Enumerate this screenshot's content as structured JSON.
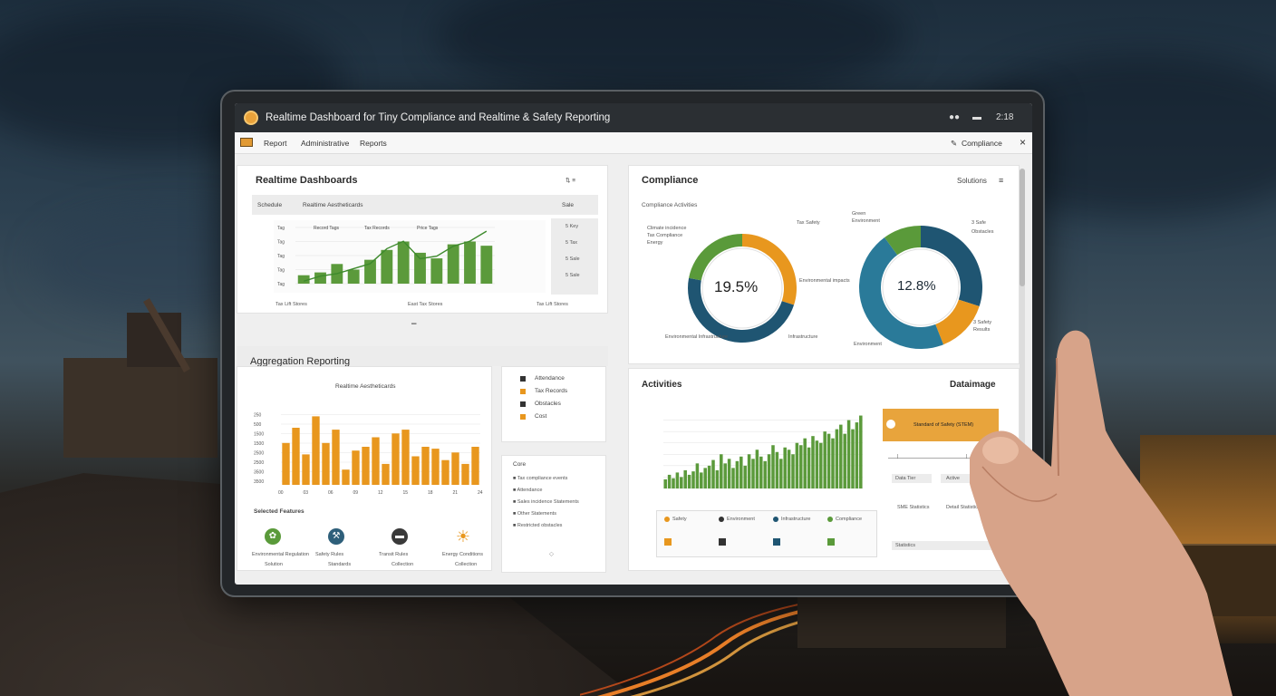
{
  "titlebar": {
    "title": "Realtime Dashboard for Tiny Compliance and Realtime & Safety Reporting",
    "right_icons": [
      "link-icon",
      "cloud-icon"
    ],
    "right_label": "2:18"
  },
  "menubar": {
    "items": [
      "Report",
      "Administrative",
      "Reports"
    ],
    "right_label": "Compliance",
    "close": "×"
  },
  "realtime": {
    "title": "Realtime Dashboards",
    "toolbar_left": "Schedule",
    "toolbar_mid": "Realtime Aestheticards",
    "toolbar_right": "Sale",
    "side_items": [
      "5 Key",
      "5 Tax",
      "5 Sale",
      "5 Sale"
    ],
    "footer": [
      "Tax Lift Stores",
      "East Tax Stores",
      "Tax Lift Stores"
    ],
    "chart_data": {
      "type": "bar",
      "categories": [
        "1",
        "2",
        "3",
        "4",
        "5",
        "6",
        "7",
        "8",
        "9",
        "10",
        "11",
        "12"
      ],
      "values": [
        6,
        8,
        14,
        10,
        17,
        24,
        30,
        22,
        18,
        28,
        30,
        27
      ],
      "ylim": [
        0,
        40
      ],
      "ytick_labels": [
        "Tag",
        "Tag",
        "Tag",
        "Tag",
        "Tag"
      ],
      "line": [
        2,
        6,
        8,
        12,
        16,
        28,
        34,
        20,
        22,
        30,
        34,
        42
      ],
      "annotations": [
        "Record Tags",
        "Tax Records",
        "Price Tags"
      ]
    }
  },
  "aggregation": {
    "title": "Aggregation Reporting",
    "chart_title": "Realtime Aestheticards",
    "chart_data": {
      "type": "bar",
      "categories": [
        "0",
        "1",
        "2",
        "3",
        "4",
        "5",
        "6",
        "7",
        "8",
        "9",
        "10",
        "11",
        "12",
        "13",
        "14",
        "15",
        "16",
        "17",
        "18",
        "19"
      ],
      "values": [
        22,
        30,
        16,
        36,
        22,
        29,
        8,
        18,
        20,
        25,
        11,
        27,
        29,
        15,
        20,
        19,
        13,
        17,
        11,
        20
      ],
      "ylim": [
        0,
        40
      ],
      "ytick_labels": [
        "3500",
        "3500",
        "2500",
        "2500",
        "1500",
        "1500",
        "500",
        "250"
      ],
      "xtick_labels": [
        "00",
        "03",
        "06",
        "09",
        "12",
        "15",
        "18",
        "21",
        "24"
      ]
    },
    "legend": [
      {
        "label": "Attendance",
        "color": "#333333"
      },
      {
        "label": "Tax Records",
        "color": "#e8971e"
      },
      {
        "label": "Obstacles",
        "color": "#333333"
      },
      {
        "label": "Cost",
        "color": "#e8971e"
      }
    ],
    "notes": {
      "title": "Core",
      "lines": [
        "Tax compliance events",
        "Attendance",
        "Sales incidence Statements",
        "Other Statements",
        "Restricted obstacles"
      ]
    },
    "features_title": "Selected Features",
    "features": [
      {
        "icon": "leaf-icon",
        "color": "#5a9a3a",
        "label": "Environmental Regulation",
        "sub": "Solution"
      },
      {
        "icon": "hammer-icon",
        "color": "#2e5f7a",
        "label": "Safety Rules",
        "sub": "Standards"
      },
      {
        "icon": "truck-icon",
        "color": "#3a3a3a",
        "label": "Transit Rules",
        "sub": "Collection"
      },
      {
        "icon": "sun-icon",
        "color": "#e8971e",
        "label": "Energy Conditions",
        "sub": "Collection"
      }
    ]
  },
  "compliance": {
    "title": "Compliance",
    "right_label": "Solutions",
    "sub": "Compliance Activities",
    "donut1": {
      "value": "19.5%",
      "chart_data": {
        "type": "pie",
        "labels": [
          "Orange",
          "Blue",
          "Green"
        ],
        "values": [
          30,
          48,
          22
        ],
        "colors": [
          "#e8971e",
          "#1f5572",
          "#5a9a3a"
        ]
      },
      "labels": [
        "Climate incidence",
        "Tax Compliance",
        "Energy",
        "Tax Safety",
        "Environmental impacts",
        "Environmental Infrastructure",
        "Infrastructure"
      ]
    },
    "donut2": {
      "value": "12.8%",
      "chart_data": {
        "type": "pie",
        "labels": [
          "Blue",
          "Orange",
          "Teal",
          "Green"
        ],
        "values": [
          30,
          14,
          46,
          10
        ],
        "colors": [
          "#1f5572",
          "#e8971e",
          "#2a7a99",
          "#5a9a3a"
        ]
      },
      "labels": [
        "Green",
        "Environment",
        "3 Safe",
        "Obstacles",
        "3 Safety",
        "Results",
        "Environment"
      ]
    }
  },
  "activities": {
    "title": "Activities",
    "right_label": "Dataimage",
    "chart_data": {
      "type": "bar",
      "categories": [
        "1",
        "2",
        "3",
        "4",
        "5",
        "6",
        "7",
        "8",
        "9",
        "10",
        "11",
        "12",
        "13",
        "14",
        "15",
        "16",
        "17",
        "18",
        "19",
        "20",
        "21",
        "22",
        "23",
        "24",
        "25",
        "26",
        "27",
        "28",
        "29",
        "30",
        "31",
        "32",
        "33",
        "34",
        "35",
        "36",
        "37",
        "38",
        "39",
        "40",
        "41",
        "42",
        "43",
        "44",
        "45",
        "46",
        "47",
        "48",
        "49",
        "50"
      ],
      "values": [
        8,
        12,
        9,
        14,
        10,
        16,
        12,
        15,
        22,
        14,
        18,
        20,
        25,
        16,
        30,
        22,
        26,
        18,
        24,
        28,
        20,
        30,
        26,
        34,
        28,
        24,
        30,
        38,
        32,
        26,
        36,
        34,
        30,
        40,
        38,
        44,
        36,
        46,
        42,
        40,
        50,
        48,
        44,
        52,
        56,
        48,
        60,
        52,
        58,
        64
      ],
      "ylim": [
        0,
        70
      ]
    },
    "legend": [
      {
        "label": "Safety",
        "color": "#e8971e"
      },
      {
        "label": "Environment",
        "color": "#333333"
      },
      {
        "label": "Infrastructure",
        "color": "#1f5572"
      },
      {
        "label": "Compliance",
        "color": "#5a9a3a"
      }
    ],
    "callout": "Standard of Safety (STEM)",
    "slider_labels": [
      "Data Tier",
      "Active"
    ],
    "notes": [
      "SME Statistics",
      "Detail Statistics",
      "Statistics"
    ]
  }
}
